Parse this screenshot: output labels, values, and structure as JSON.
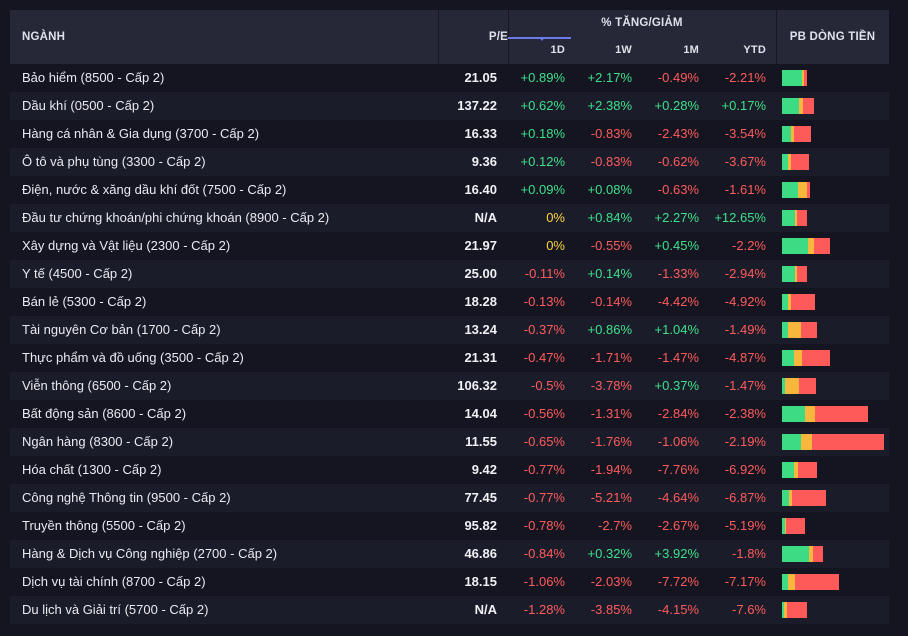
{
  "header": {
    "nganh": "NGÀNH",
    "pe": "P/E",
    "group": "% TĂNG/GIẢM",
    "d": "1D",
    "w": "1W",
    "m": "1M",
    "y": "YTD",
    "pb": "PB DÒNG TIỀN"
  },
  "colors": {
    "up": "#3ee08a",
    "down": "#ff5c5c",
    "flat": "#ffd43b",
    "bar_buy": "#3ddb84",
    "bar_neutral": "#f6b73c",
    "bar_sell": "#ff5a5a"
  },
  "rows": [
    {
      "name": "Bảo hiểm (8500 - Cấp 2)",
      "pe": "21.05",
      "d": "+0.89%",
      "w": "+2.17%",
      "m": "-0.49%",
      "y": "-2.21%",
      "flow": [
        0.78,
        0.07,
        0.15
      ],
      "flow_total": 0.25
    },
    {
      "name": "Dầu khí (0500 - Cấp 2)",
      "pe": "137.22",
      "d": "+0.62%",
      "w": "+2.38%",
      "m": "+0.28%",
      "y": "+0.17%",
      "flow": [
        0.55,
        0.1,
        0.35
      ],
      "flow_total": 0.31
    },
    {
      "name": "Hàng cá nhân & Gia dụng (3700 - Cấp 2)",
      "pe": "16.33",
      "d": "+0.18%",
      "w": "-0.83%",
      "m": "-2.43%",
      "y": "-3.54%",
      "flow": [
        0.32,
        0.1,
        0.58
      ],
      "flow_total": 0.28
    },
    {
      "name": "Ô tô và phụ tùng (3300 - Cấp 2)",
      "pe": "9.36",
      "d": "+0.12%",
      "w": "-0.83%",
      "m": "-0.62%",
      "y": "-3.67%",
      "flow": [
        0.22,
        0.12,
        0.66
      ],
      "flow_total": 0.26
    },
    {
      "name": "Điện, nước & xăng dầu khí đốt (7500 - Cấp 2)",
      "pe": "16.40",
      "d": "+0.09%",
      "w": "+0.08%",
      "m": "-0.63%",
      "y": "-1.61%",
      "flow": [
        0.58,
        0.32,
        0.1
      ],
      "flow_total": 0.27
    },
    {
      "name": "Đầu tư chứng khoán/phi chứng khoán (8900 - Cấp 2)",
      "pe": "N/A",
      "d": "0%",
      "w": "+0.84%",
      "m": "+2.27%",
      "y": "+12.65%",
      "flow": [
        0.5,
        0.1,
        0.4
      ],
      "flow_total": 0.25
    },
    {
      "name": "Xây dựng và Vật liệu (2300 - Cấp 2)",
      "pe": "21.97",
      "d": "0%",
      "w": "-0.55%",
      "m": "+0.45%",
      "y": "-2.2%",
      "flow": [
        0.54,
        0.13,
        0.33
      ],
      "flow_total": 0.47
    },
    {
      "name": "Y tế (4500 - Cấp 2)",
      "pe": "25.00",
      "d": "-0.11%",
      "w": "+0.14%",
      "m": "-1.33%",
      "y": "-2.94%",
      "flow": [
        0.52,
        0.08,
        0.4
      ],
      "flow_total": 0.25
    },
    {
      "name": "Bán lẻ (5300 - Cấp 2)",
      "pe": "18.28",
      "d": "-0.13%",
      "w": "-0.14%",
      "m": "-4.42%",
      "y": "-4.92%",
      "flow": [
        0.18,
        0.1,
        0.72
      ],
      "flow_total": 0.32
    },
    {
      "name": "Tài nguyên Cơ bản (1700 - Cấp 2)",
      "pe": "13.24",
      "d": "-0.37%",
      "w": "+0.86%",
      "m": "+1.04%",
      "y": "-1.49%",
      "flow": [
        0.18,
        0.37,
        0.45
      ],
      "flow_total": 0.34
    },
    {
      "name": "Thực phẩm và đồ uống (3500 - Cấp 2)",
      "pe": "21.31",
      "d": "-0.47%",
      "w": "-1.71%",
      "m": "-1.47%",
      "y": "-4.87%",
      "flow": [
        0.26,
        0.16,
        0.58
      ],
      "flow_total": 0.47
    },
    {
      "name": "Viễn thông (6500 - Cấp 2)",
      "pe": "106.32",
      "d": "-0.5%",
      "w": "-3.78%",
      "m": "+0.37%",
      "y": "-1.47%",
      "flow": [
        0.1,
        0.4,
        0.5
      ],
      "flow_total": 0.33
    },
    {
      "name": "Bất động sản (8600 - Cấp 2)",
      "pe": "14.04",
      "d": "-0.56%",
      "w": "-1.31%",
      "m": "-2.84%",
      "y": "-2.38%",
      "flow": [
        0.27,
        0.12,
        0.61
      ],
      "flow_total": 0.84
    },
    {
      "name": "Ngân hàng (8300 - Cấp 2)",
      "pe": "11.55",
      "d": "-0.65%",
      "w": "-1.76%",
      "m": "-1.06%",
      "y": "-2.19%",
      "flow": [
        0.19,
        0.1,
        0.71
      ],
      "flow_total": 1.0
    },
    {
      "name": "Hóa chất (1300 - Cấp 2)",
      "pe": "9.42",
      "d": "-0.77%",
      "w": "-1.94%",
      "m": "-7.76%",
      "y": "-6.92%",
      "flow": [
        0.36,
        0.1,
        0.54
      ],
      "flow_total": 0.34
    },
    {
      "name": "Công nghệ Thông tin (9500 - Cấp 2)",
      "pe": "77.45",
      "d": "-0.77%",
      "w": "-5.21%",
      "m": "-4.64%",
      "y": "-6.87%",
      "flow": [
        0.16,
        0.06,
        0.78
      ],
      "flow_total": 0.43
    },
    {
      "name": "Truyền thông (5500 - Cấp 2)",
      "pe": "95.82",
      "d": "-0.78%",
      "w": "-2.7%",
      "m": "-2.67%",
      "y": "-5.19%",
      "flow": [
        0.13,
        0.05,
        0.82
      ],
      "flow_total": 0.23
    },
    {
      "name": "Hàng & Dịch vụ Công nghiệp (2700 - Cấp 2)",
      "pe": "46.86",
      "d": "-0.84%",
      "w": "+0.32%",
      "m": "+3.92%",
      "y": "-1.8%",
      "flow": [
        0.67,
        0.08,
        0.25
      ],
      "flow_total": 0.4
    },
    {
      "name": "Dịch vụ tài chính (8700 - Cấp 2)",
      "pe": "18.15",
      "d": "-1.06%",
      "w": "-2.03%",
      "m": "-7.72%",
      "y": "-7.17%",
      "flow": [
        0.1,
        0.12,
        0.78
      ],
      "flow_total": 0.56
    },
    {
      "name": "Du lịch và Giải trí (5700 - Cấp 2)",
      "pe": "N/A",
      "d": "-1.28%",
      "w": "-3.85%",
      "m": "-4.15%",
      "y": "-7.6%",
      "flow": [
        0.08,
        0.12,
        0.8
      ],
      "flow_total": 0.25
    }
  ]
}
